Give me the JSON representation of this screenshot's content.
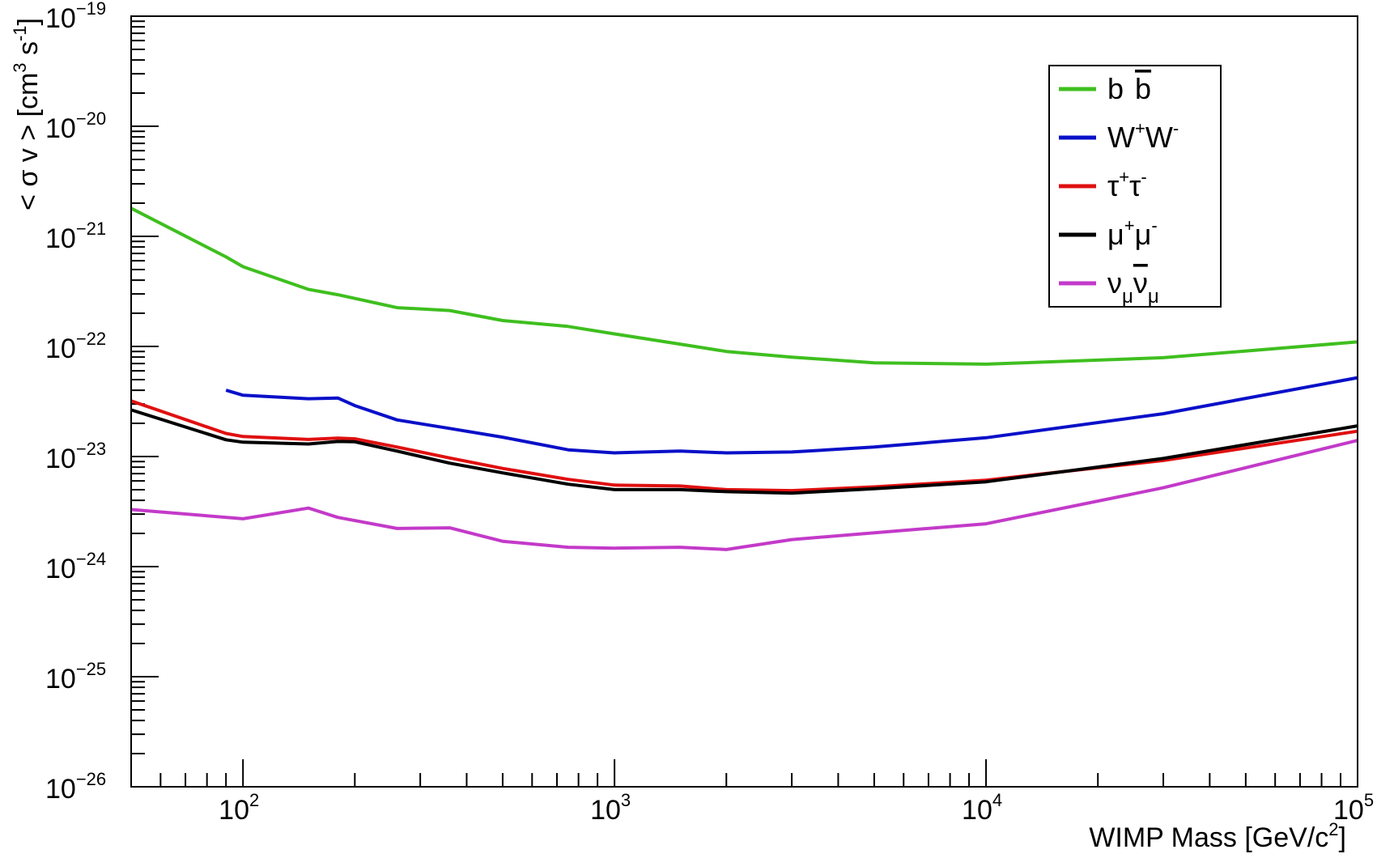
{
  "chart_data": {
    "type": "line",
    "title": "",
    "x_axis": {
      "label_parts": [
        "WIMP Mass [GeV/c",
        "2",
        "]"
      ],
      "scale": "log",
      "range": [
        50,
        100000
      ],
      "tick_labels": [
        {
          "value": 100,
          "base": "10",
          "exp": "2"
        },
        {
          "value": 1000,
          "base": "10",
          "exp": "3"
        },
        {
          "value": 10000,
          "base": "10",
          "exp": "4"
        },
        {
          "value": 100000,
          "base": "10",
          "exp": "5"
        }
      ]
    },
    "y_axis": {
      "label_parts": [
        "< σ v >  [cm",
        "3",
        " s",
        "-1",
        "]"
      ],
      "scale": "log",
      "range": [
        1e-26,
        1e-19
      ],
      "tick_labels": [
        {
          "value": 1e-19,
          "base": "10",
          "exp": "−19"
        },
        {
          "value": 1e-20,
          "base": "10",
          "exp": "−20"
        },
        {
          "value": 1e-21,
          "base": "10",
          "exp": "−21"
        },
        {
          "value": 1e-22,
          "base": "10",
          "exp": "−22"
        },
        {
          "value": 1e-23,
          "base": "10",
          "exp": "−23"
        },
        {
          "value": 1e-24,
          "base": "10",
          "exp": "−24"
        },
        {
          "value": 1e-25,
          "base": "10",
          "exp": "−25"
        },
        {
          "value": 1e-26,
          "base": "10",
          "exp": "−26"
        }
      ]
    },
    "grid": false,
    "legend_placement": "top-right",
    "series": [
      {
        "name": "b b̄",
        "legend": {
          "base": "b",
          "bar": "b"
        },
        "color": "#3fbf1f",
        "points": [
          [
            50,
            1.8e-21
          ],
          [
            90,
            6.5e-22
          ],
          [
            100,
            5.3e-22
          ],
          [
            150,
            3.3e-22
          ],
          [
            180,
            2.95e-22
          ],
          [
            260,
            2.25e-22
          ],
          [
            360,
            2.12e-22
          ],
          [
            500,
            1.72e-22
          ],
          [
            750,
            1.52e-22
          ],
          [
            1000,
            1.3e-22
          ],
          [
            1500,
            1.05e-22
          ],
          [
            2000,
            9e-23
          ],
          [
            3000,
            8e-23
          ],
          [
            5000,
            7.1e-23
          ],
          [
            10000,
            6.9e-23
          ],
          [
            30000,
            7.9e-23
          ],
          [
            100000,
            1.1e-22
          ]
        ]
      },
      {
        "name": "W⁺W⁻",
        "legend": {
          "parts": [
            "W",
            "+",
            "W",
            "-"
          ]
        },
        "color": "#0a10c8",
        "points": [
          [
            90,
            4e-23
          ],
          [
            100,
            3.6e-23
          ],
          [
            150,
            3.35e-23
          ],
          [
            180,
            3.4e-23
          ],
          [
            200,
            2.9e-23
          ],
          [
            260,
            2.15e-23
          ],
          [
            360,
            1.8e-23
          ],
          [
            500,
            1.5e-23
          ],
          [
            750,
            1.15e-23
          ],
          [
            1000,
            1.08e-23
          ],
          [
            1500,
            1.12e-23
          ],
          [
            2000,
            1.08e-23
          ],
          [
            3000,
            1.1e-23
          ],
          [
            5000,
            1.22e-23
          ],
          [
            10000,
            1.48e-23
          ],
          [
            30000,
            2.45e-23
          ],
          [
            100000,
            5.2e-23
          ]
        ]
      },
      {
        "name": "τ⁺τ⁻",
        "legend": {
          "parts": [
            "τ",
            "+",
            "τ",
            "-"
          ]
        },
        "color": "#e01010",
        "points": [
          [
            50,
            3.2e-23
          ],
          [
            90,
            1.62e-23
          ],
          [
            100,
            1.52e-23
          ],
          [
            150,
            1.43e-23
          ],
          [
            180,
            1.47e-23
          ],
          [
            200,
            1.45e-23
          ],
          [
            260,
            1.22e-23
          ],
          [
            360,
            9.7e-24
          ],
          [
            500,
            7.8e-24
          ],
          [
            750,
            6.2e-24
          ],
          [
            1000,
            5.5e-24
          ],
          [
            1500,
            5.4e-24
          ],
          [
            2000,
            5e-24
          ],
          [
            3000,
            4.9e-24
          ],
          [
            5000,
            5.3e-24
          ],
          [
            10000,
            6.1e-24
          ],
          [
            30000,
            9.2e-24
          ],
          [
            100000,
            1.7e-23
          ]
        ]
      },
      {
        "name": "μ⁺μ⁻",
        "legend": {
          "parts": [
            "μ",
            "+",
            "μ",
            "-"
          ]
        },
        "color": "#000000",
        "points": [
          [
            50,
            2.65e-23
          ],
          [
            90,
            1.42e-23
          ],
          [
            100,
            1.35e-23
          ],
          [
            150,
            1.3e-23
          ],
          [
            180,
            1.37e-23
          ],
          [
            200,
            1.36e-23
          ],
          [
            260,
            1.12e-23
          ],
          [
            360,
            8.7e-24
          ],
          [
            500,
            7.1e-24
          ],
          [
            750,
            5.6e-24
          ],
          [
            1000,
            5e-24
          ],
          [
            1500,
            5e-24
          ],
          [
            2000,
            4.8e-24
          ],
          [
            3000,
            4.65e-24
          ],
          [
            5000,
            5.1e-24
          ],
          [
            10000,
            5.9e-24
          ],
          [
            30000,
            9.6e-24
          ],
          [
            100000,
            1.9e-23
          ]
        ]
      },
      {
        "name": "ν_μ ν̄_μ",
        "legend": {
          "base": "ν",
          "sub": "μ",
          "bar": "ν",
          "bar_sub": "μ"
        },
        "color": "#c33ac9",
        "points": [
          [
            50,
            3.3e-24
          ],
          [
            100,
            2.72e-24
          ],
          [
            150,
            3.4e-24
          ],
          [
            180,
            2.8e-24
          ],
          [
            260,
            2.22e-24
          ],
          [
            360,
            2.25e-24
          ],
          [
            500,
            1.7e-24
          ],
          [
            750,
            1.5e-24
          ],
          [
            1000,
            1.47e-24
          ],
          [
            1500,
            1.5e-24
          ],
          [
            2000,
            1.43e-24
          ],
          [
            3000,
            1.76e-24
          ],
          [
            5000,
            2.03e-24
          ],
          [
            10000,
            2.45e-24
          ],
          [
            30000,
            5.2e-24
          ],
          [
            100000,
            1.4e-23
          ]
        ]
      }
    ]
  }
}
